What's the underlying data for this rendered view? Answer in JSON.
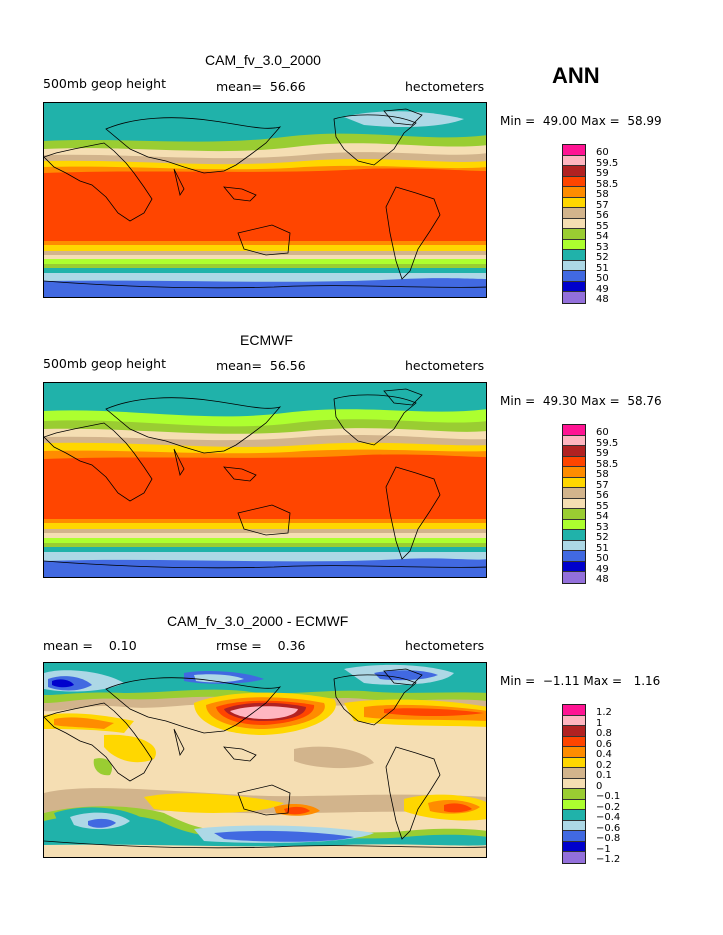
{
  "season": "ANN",
  "units": "hectometers",
  "panels": [
    {
      "title": "CAM_fv_3.0_2000",
      "left_label": "500mb geop height",
      "stat_label": "mean=",
      "stat_value": "56.66",
      "minmax": {
        "min_label": "Min =",
        "min": "49.00",
        "max_label": "Max =",
        "max": "58.99"
      },
      "legend": [
        "60",
        "59.5",
        "59",
        "58.5",
        "58",
        "57",
        "56",
        "55",
        "54",
        "53",
        "52",
        "51",
        "50",
        "49",
        "48"
      ]
    },
    {
      "title": "ECMWF",
      "left_label": "500mb geop height",
      "stat_label": "mean=",
      "stat_value": "56.56",
      "minmax": {
        "min_label": "Min =",
        "min": "49.30",
        "max_label": "Max =",
        "max": "58.76"
      },
      "legend": [
        "60",
        "59.5",
        "59",
        "58.5",
        "58",
        "57",
        "56",
        "55",
        "54",
        "53",
        "52",
        "51",
        "50",
        "49",
        "48"
      ]
    },
    {
      "title": "CAM_fv_3.0_2000 - ECMWF",
      "mean_label": "mean =",
      "mean_value": "0.10",
      "rmse_label": "rmse =",
      "rmse_value": "0.36",
      "minmax": {
        "min_label": "Min =",
        "min": "−1.11",
        "max_label": "Max =",
        "max": "1.16"
      },
      "legend": [
        "1.2",
        "1",
        "0.8",
        "0.6",
        "0.4",
        "0.2",
        "0.1",
        "0",
        "−0.1",
        "−0.2",
        "−0.4",
        "−0.6",
        "−0.8",
        "−1",
        "−1.2"
      ]
    }
  ],
  "colors": {
    "scale": [
      "#ff1493",
      "#ffb6c1",
      "#b22222",
      "#ff4500",
      "#ff8c00",
      "#ffd700",
      "#d2b48c",
      "#f5deb3",
      "#9acd32",
      "#adff2f",
      "#20b2aa",
      "#add8e6",
      "#4169e1",
      "#0000cd",
      "#9370db"
    ],
    "coast": "#000000"
  }
}
